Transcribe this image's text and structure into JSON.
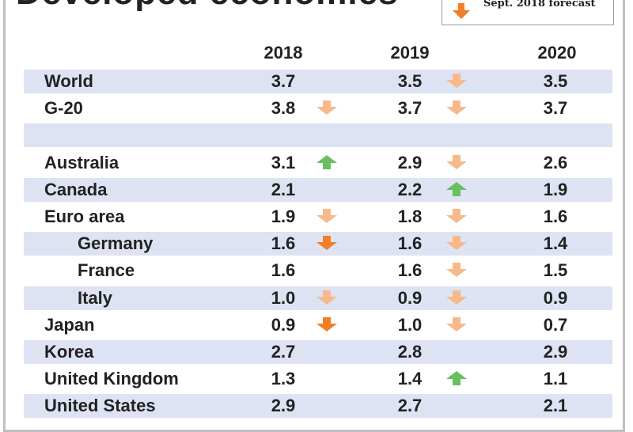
{
  "header": {
    "title": "Developed economies",
    "legend_label": "Sept. 2018 forecast",
    "legend_icon": "down-arrow-icon"
  },
  "colors": {
    "band": "#dde3f2",
    "up": "#6abf63",
    "down_light": "#f7b98a",
    "down_strong": "#f07f28",
    "frame": "#bfbfbf"
  },
  "chart_data": {
    "type": "table",
    "title": "Developed economies",
    "columns": [
      "2018",
      "2019",
      "2020"
    ],
    "rows": [
      {
        "label": "World",
        "indent": 0,
        "shaded": true,
        "values": [
          "3.7",
          "3.5",
          "3.5"
        ],
        "arrows": [
          "",
          "down-light",
          ""
        ]
      },
      {
        "label": "G-20",
        "indent": 0,
        "shaded": false,
        "values": [
          "3.8",
          "3.7",
          "3.7"
        ],
        "arrows": [
          "down-light",
          "down-light",
          ""
        ]
      },
      {
        "label": "",
        "indent": 0,
        "shaded": true,
        "values": [
          "",
          "",
          ""
        ],
        "arrows": [
          "",
          "",
          ""
        ]
      },
      {
        "label": "Australia",
        "indent": 0,
        "shaded": false,
        "values": [
          "3.1",
          "2.9",
          "2.6"
        ],
        "arrows": [
          "up",
          "down-light",
          ""
        ]
      },
      {
        "label": "Canada",
        "indent": 0,
        "shaded": true,
        "values": [
          "2.1",
          "2.2",
          "1.9"
        ],
        "arrows": [
          "",
          "up",
          ""
        ]
      },
      {
        "label": "Euro area",
        "indent": 0,
        "shaded": false,
        "values": [
          "1.9",
          "1.8",
          "1.6"
        ],
        "arrows": [
          "down-light",
          "down-light",
          ""
        ]
      },
      {
        "label": "Germany",
        "indent": 1,
        "shaded": true,
        "values": [
          "1.6",
          "1.6",
          "1.4"
        ],
        "arrows": [
          "down-strong",
          "down-light",
          ""
        ]
      },
      {
        "label": "France",
        "indent": 1,
        "shaded": false,
        "values": [
          "1.6",
          "1.6",
          "1.5"
        ],
        "arrows": [
          "",
          "down-light",
          ""
        ]
      },
      {
        "label": "Italy",
        "indent": 1,
        "shaded": true,
        "values": [
          "1.0",
          "0.9",
          "0.9"
        ],
        "arrows": [
          "down-light",
          "down-light",
          ""
        ]
      },
      {
        "label": "Japan",
        "indent": 0,
        "shaded": false,
        "values": [
          "0.9",
          "1.0",
          "0.7"
        ],
        "arrows": [
          "down-strong",
          "down-light",
          ""
        ]
      },
      {
        "label": "Korea",
        "indent": 0,
        "shaded": true,
        "values": [
          "2.7",
          "2.8",
          "2.9"
        ],
        "arrows": [
          "",
          "",
          ""
        ]
      },
      {
        "label": "United Kingdom",
        "indent": 0,
        "shaded": false,
        "values": [
          "1.3",
          "1.4",
          "1.1"
        ],
        "arrows": [
          "",
          "up",
          ""
        ]
      },
      {
        "label": "United States",
        "indent": 0,
        "shaded": true,
        "values": [
          "2.9",
          "2.7",
          "2.1"
        ],
        "arrows": [
          "",
          "",
          ""
        ]
      }
    ]
  }
}
